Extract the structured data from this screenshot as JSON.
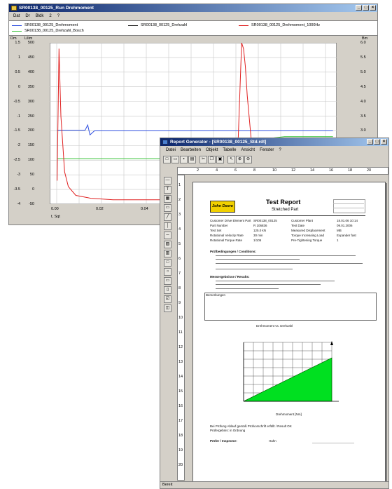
{
  "window1": {
    "title": "SR00138_00125_Run Drehmoment",
    "menu": [
      "Dat",
      "Dr",
      "Bldk",
      "2",
      "?"
    ],
    "legend": [
      {
        "label": "SR00138_00125_Drehmoment",
        "color": "#3050e0"
      },
      {
        "label": "SR00138_00125_Drehzahl",
        "color": "#202020"
      },
      {
        "label": "SR00138_00125_Drehmoment_1000Hz",
        "color": "#e02020"
      },
      {
        "label": "SR00138_00125_Drehzahl_Bosch",
        "color": "#30c030"
      }
    ],
    "left_axis_units": [
      "Dm",
      "Lilim"
    ],
    "left_ticks_a": [
      "1.5",
      "1",
      "0.5",
      "0",
      "-0.5",
      "-1",
      "-1.5",
      "-2",
      "-2.5",
      "-3",
      "-3.5",
      "-4"
    ],
    "left_ticks_b": [
      "500",
      "450",
      "400",
      "350",
      "300",
      "250",
      "200",
      "150",
      "100",
      "50",
      "0",
      "-50"
    ],
    "right_unit": "Bm",
    "right_ticks": [
      "6.0",
      "5.5",
      "5.0",
      "4.5",
      "4.0",
      "3.5",
      "3.0",
      "2.5",
      "2.0",
      "1.5",
      "1.0",
      "0.5"
    ],
    "x_ticks": [
      "0.00",
      "0.02",
      "0.04",
      "0.06"
    ],
    "x_unit": "t, Sqt"
  },
  "window2": {
    "title": "Report Generator - [SR00138_00125_Std.rdt]",
    "menu": [
      "Datei",
      "Bearbeiten",
      "Objekt",
      "Tabelle",
      "Ansicht",
      "Fenster",
      "?"
    ],
    "ruler_numbers": [
      "2",
      "4",
      "6",
      "8",
      "10",
      "12",
      "14",
      "16",
      "18",
      "20"
    ],
    "vruler_numbers": [
      "1",
      "2",
      "3",
      "4",
      "5",
      "6",
      "7",
      "8",
      "9",
      "10",
      "11",
      "12",
      "13",
      "14",
      "15",
      "16",
      "17",
      "18",
      "19",
      "20"
    ],
    "status": "Bereit",
    "report": {
      "logo": "John Deere",
      "title": "Test Report",
      "subtitle": "Stretched Part",
      "rows_left": [
        "Customer Drive Element Part",
        "Part Number",
        "Test Set",
        "Rotational Velocity Rate",
        "Rotational Torque Rate"
      ],
      "rows_mid": [
        "SR00138_00125",
        "R 106836",
        "125.0 kN",
        "30 min",
        "1/105"
      ],
      "rows_right": [
        "Customer Plant",
        "Test Date",
        "Measured Displacement",
        "Torque Increasing Load",
        "Pre-Tightening Torque"
      ],
      "rows_rval": [
        "18.01.06  10:14",
        "09.01.2006",
        "MB",
        "Expander fast",
        "1"
      ],
      "section1": "Prüfbedingungen / Conditions:",
      "section2": "Messergebnisse / Results:",
      "section3": "Bemerkungen",
      "chart_caption": "Drehmoment vs. Drehzahl",
      "chart_xlabel": "Drehmoment [Nm]",
      "footer1": "Bei Prüfung Ablauf gemäß Prüfvorschrift erfüllt / Result OK",
      "footer2": "Prüfergebnis: in Ordnung",
      "sign_label": "Prüfer / Inspector:",
      "sign_value": "Hahn"
    }
  },
  "chart_data": {
    "type": "line",
    "xlim": [
      -0.005,
      0.072
    ],
    "ylim": [
      -50,
      500
    ],
    "series": [
      {
        "name": "SR00138_00125_Drehmoment",
        "color": "#3050e0",
        "x": [
          -0.003,
          0.0045,
          0.0052,
          0.0058,
          0.007,
          0.071
        ],
        "y": [
          202,
          202,
          220,
          186,
          200,
          200
        ]
      },
      {
        "name": "SR00138_00125_Drehzahl_Bosch",
        "color": "#30c030",
        "x": [
          -0.003,
          0.048,
          0.0482,
          0.05,
          0.051,
          0.052,
          0.055,
          0.058,
          0.071
        ],
        "y": [
          105,
          105,
          104,
          106,
          150,
          170,
          176,
          180,
          180
        ]
      },
      {
        "name": "SR00138_00125_Drehmoment_1000Hz",
        "color": "#e02020",
        "x": [
          -0.003,
          -0.0025,
          -0.002,
          -0.001,
          0.0,
          0.002,
          0.006,
          0.012,
          0.045,
          0.0465,
          0.047,
          0.0475,
          0.048,
          0.049,
          0.05,
          0.052,
          0.055,
          0.06,
          0.071
        ],
        "y": [
          30,
          480,
          250,
          60,
          10,
          -20,
          -30,
          -35,
          -35,
          500,
          480,
          420,
          320,
          180,
          80,
          20,
          -10,
          -30,
          -35
        ]
      }
    ]
  }
}
